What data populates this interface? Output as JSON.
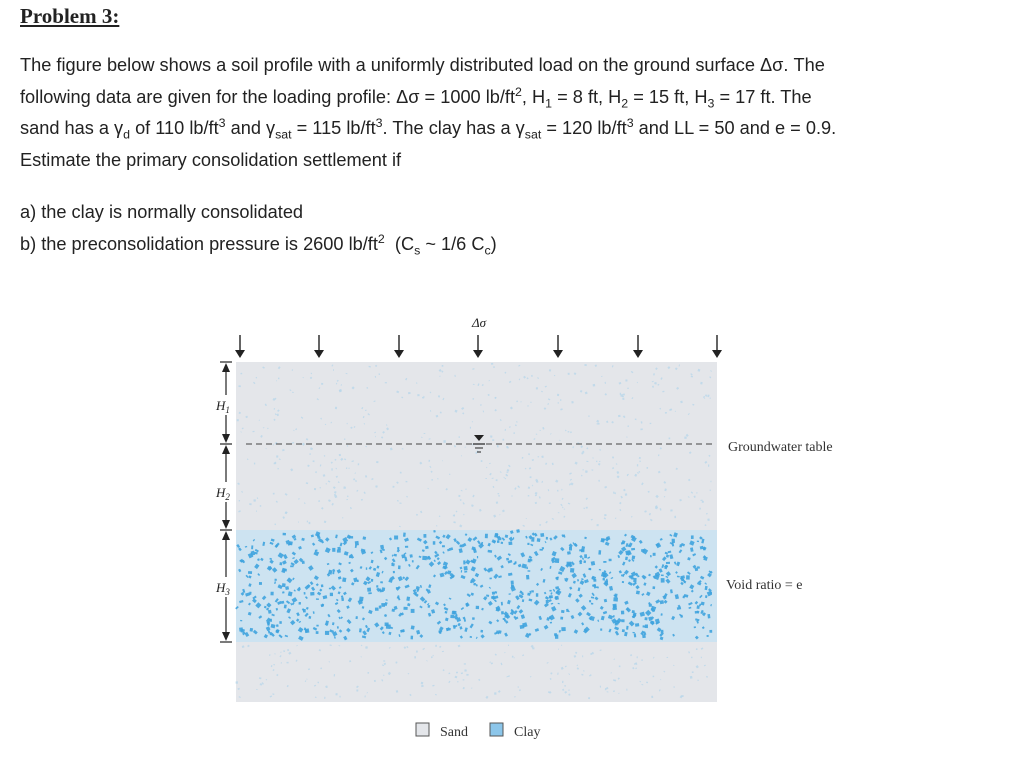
{
  "problem": {
    "title": "Problem 3:",
    "para": {
      "l1": "The figure below shows a soil profile with a uniformly distributed load on the ground surface Δσ. The",
      "l2_a": "following data are given for the loading profile: Δσ = 1000 lb/ft",
      "sq": "2",
      "l2_b": ", H",
      "h1_sub": "1",
      "l2_c": " = 8 ft, H",
      "h2_sub": "2",
      "l2_d": " = 15 ft, H",
      "h3_sub": "3",
      "l2_e": " = 17 ft. The",
      "l3_a": "sand has a γ",
      "d_sub": "d",
      "l3_b": " of 110 lb/ft",
      "cube": "3",
      "l3_c": " and γ",
      "sat_sub": "sat",
      "l3_d": " = 115 lb/ft",
      "l3_e": ". The clay has a γ",
      "l3_f": " = 120 lb/ft",
      "l3_g": " and LL = 50 and e = 0.9.",
      "l4": "Estimate the primary consolidation settlement if"
    },
    "a": "a) the clay is normally consolidated",
    "b_a": "b) the preconsolidation pressure is 2600 lb/ft",
    "b_b": "  (C",
    "s_sub": "s",
    "b_c": " ~ 1/6 C",
    "c_sub": "c",
    "b_d": ")"
  },
  "figure": {
    "load_label": "Δσ",
    "h1": "H",
    "h1_sub": "1",
    "h2": "H",
    "h2_sub": "2",
    "h3": "H",
    "h3_sub": "3",
    "groundwater_label": "Groundwater table",
    "void_label": "Void ratio = e",
    "legend_sand": "Sand",
    "legend_clay": "Clay",
    "colors": {
      "sand": "#e4e6ea",
      "sand_dots": "#b9d7ea",
      "clay": "#cde3f1",
      "clay_dots": "#3fa3de",
      "ink": "#222222"
    }
  }
}
